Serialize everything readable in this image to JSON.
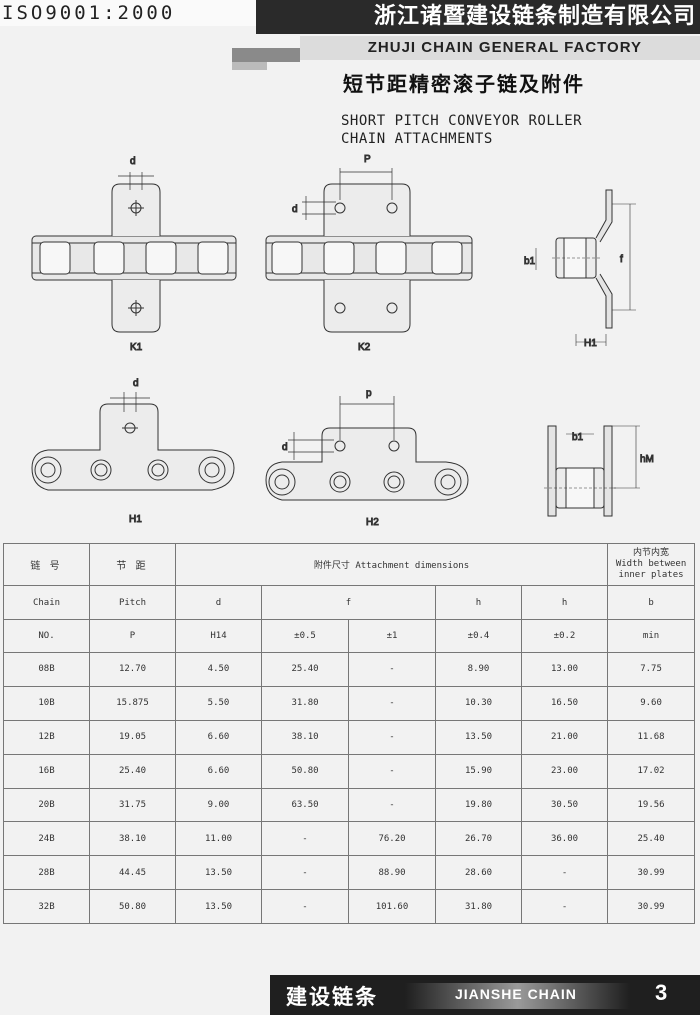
{
  "header": {
    "iso": "ISO9001:2000",
    "company_cn": "浙江诸暨建设链条制造有限公司",
    "factory_en": "ZHUJI CHAIN GENERAL FACTORY",
    "subtitle_cn": "短节距精密滚子链及附件",
    "subtitle_en_line1": "SHORT PITCH CONVEYOR ROLLER",
    "subtitle_en_line2": "CHAIN ATTACHMENTS"
  },
  "drawings": {
    "k1": "K1",
    "k2": "K2",
    "h1": "H1",
    "h2": "H2",
    "d": "d",
    "P": "P",
    "p": "p",
    "b1": "b1",
    "f": "f",
    "H1": "H1",
    "hM": "hM"
  },
  "table": {
    "h_chain_cn": "链 号",
    "h_pitch_cn": "节 距",
    "h_attach": "附件尺寸 Attachment dimensions",
    "h_width_cn": "内节内宽",
    "h_width_en1": "Width between",
    "h_width_en2": "inner plates",
    "h_chain": "Chain",
    "h_pitch": "Pitch",
    "h_d": "d",
    "h_f": "f",
    "h_h1": "h",
    "h_h2": "h",
    "h_b": "b",
    "h_no": "NO.",
    "h_p": "P",
    "h_h14": "H14",
    "h_tol1": "±0.5",
    "h_tol2": "±1",
    "h_tol3": "±0.4",
    "h_tol4": "±0.2",
    "h_min": "min",
    "rows": [
      [
        "08B",
        "12.70",
        "4.50",
        "25.40",
        "-",
        "8.90",
        "13.00",
        "7.75"
      ],
      [
        "10B",
        "15.875",
        "5.50",
        "31.80",
        "-",
        "10.30",
        "16.50",
        "9.60"
      ],
      [
        "12B",
        "19.05",
        "6.60",
        "38.10",
        "-",
        "13.50",
        "21.00",
        "11.68"
      ],
      [
        "16B",
        "25.40",
        "6.60",
        "50.80",
        "-",
        "15.90",
        "23.00",
        "17.02"
      ],
      [
        "20B",
        "31.75",
        "9.00",
        "63.50",
        "-",
        "19.80",
        "30.50",
        "19.56"
      ],
      [
        "24B",
        "38.10",
        "11.00",
        "-",
        "76.20",
        "26.70",
        "36.00",
        "25.40"
      ],
      [
        "28B",
        "44.45",
        "13.50",
        "-",
        "88.90",
        "28.60",
        "-",
        "30.99"
      ],
      [
        "32B",
        "50.80",
        "13.50",
        "-",
        "101.60",
        "31.80",
        "-",
        "30.99"
      ]
    ]
  },
  "footer": {
    "cn": "建设链条",
    "en": "JIANSHE CHAIN",
    "page": "3"
  }
}
